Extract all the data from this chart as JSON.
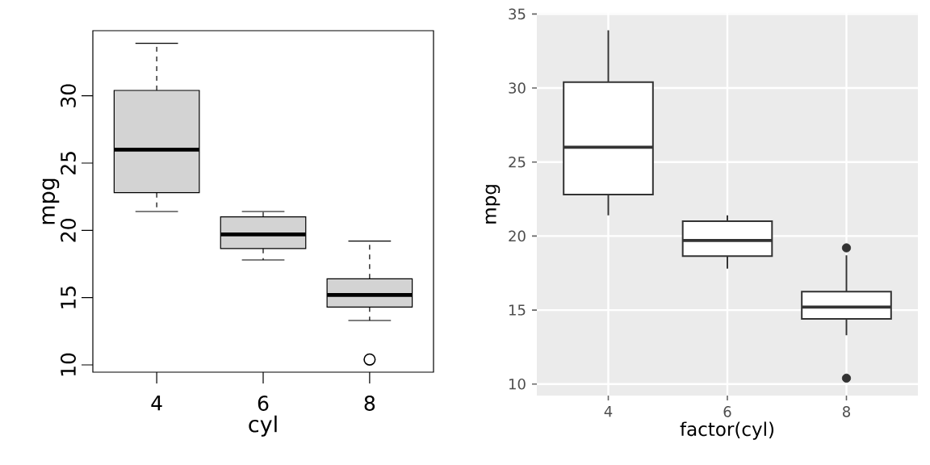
{
  "chart_data": [
    {
      "type": "box",
      "categories": [
        "4",
        "6",
        "8"
      ],
      "xlabel": "cyl",
      "ylabel": "mpg",
      "ylim": [
        9.46,
        34.84
      ],
      "yticks": [
        10,
        15,
        20,
        25,
        30
      ],
      "marker": "circle",
      "grid": false,
      "series": [
        {
          "color": "#d3d3d3",
          "boxes": [
            {
              "low": 21.4,
              "q1": 22.8,
              "median": 26.0,
              "q3": 30.4,
              "high": 33.9
            },
            {
              "low": 17.8,
              "q1": 18.65,
              "median": 19.7,
              "q3": 21.0,
              "high": 21.4
            },
            {
              "low": 13.3,
              "q1": 14.3,
              "median": 15.2,
              "q3": 16.4,
              "high": 19.2,
              "outliers": [
                10.4
              ]
            }
          ]
        }
      ]
    },
    {
      "type": "box",
      "categories": [
        "4",
        "6",
        "8"
      ],
      "xlabel": "factor(cyl)",
      "ylabel": "mpg",
      "ylim": [
        9.225,
        35.075
      ],
      "yticks": [
        10,
        15,
        20,
        25,
        30,
        35
      ],
      "marker": "circle",
      "grid": true,
      "series": [
        {
          "color": "#ffffff",
          "boxes": [
            {
              "low": 21.4,
              "q1": 22.8,
              "median": 26.0,
              "q3": 30.4,
              "high": 33.9
            },
            {
              "low": 17.8,
              "q1": 18.65,
              "median": 19.7,
              "q3": 21.0,
              "high": 21.4
            },
            {
              "low": 13.3,
              "q1": 14.4,
              "median": 15.2,
              "q3": 16.25,
              "high": 18.7,
              "outliers": [
                10.4,
                19.2
              ]
            }
          ]
        }
      ]
    }
  ]
}
